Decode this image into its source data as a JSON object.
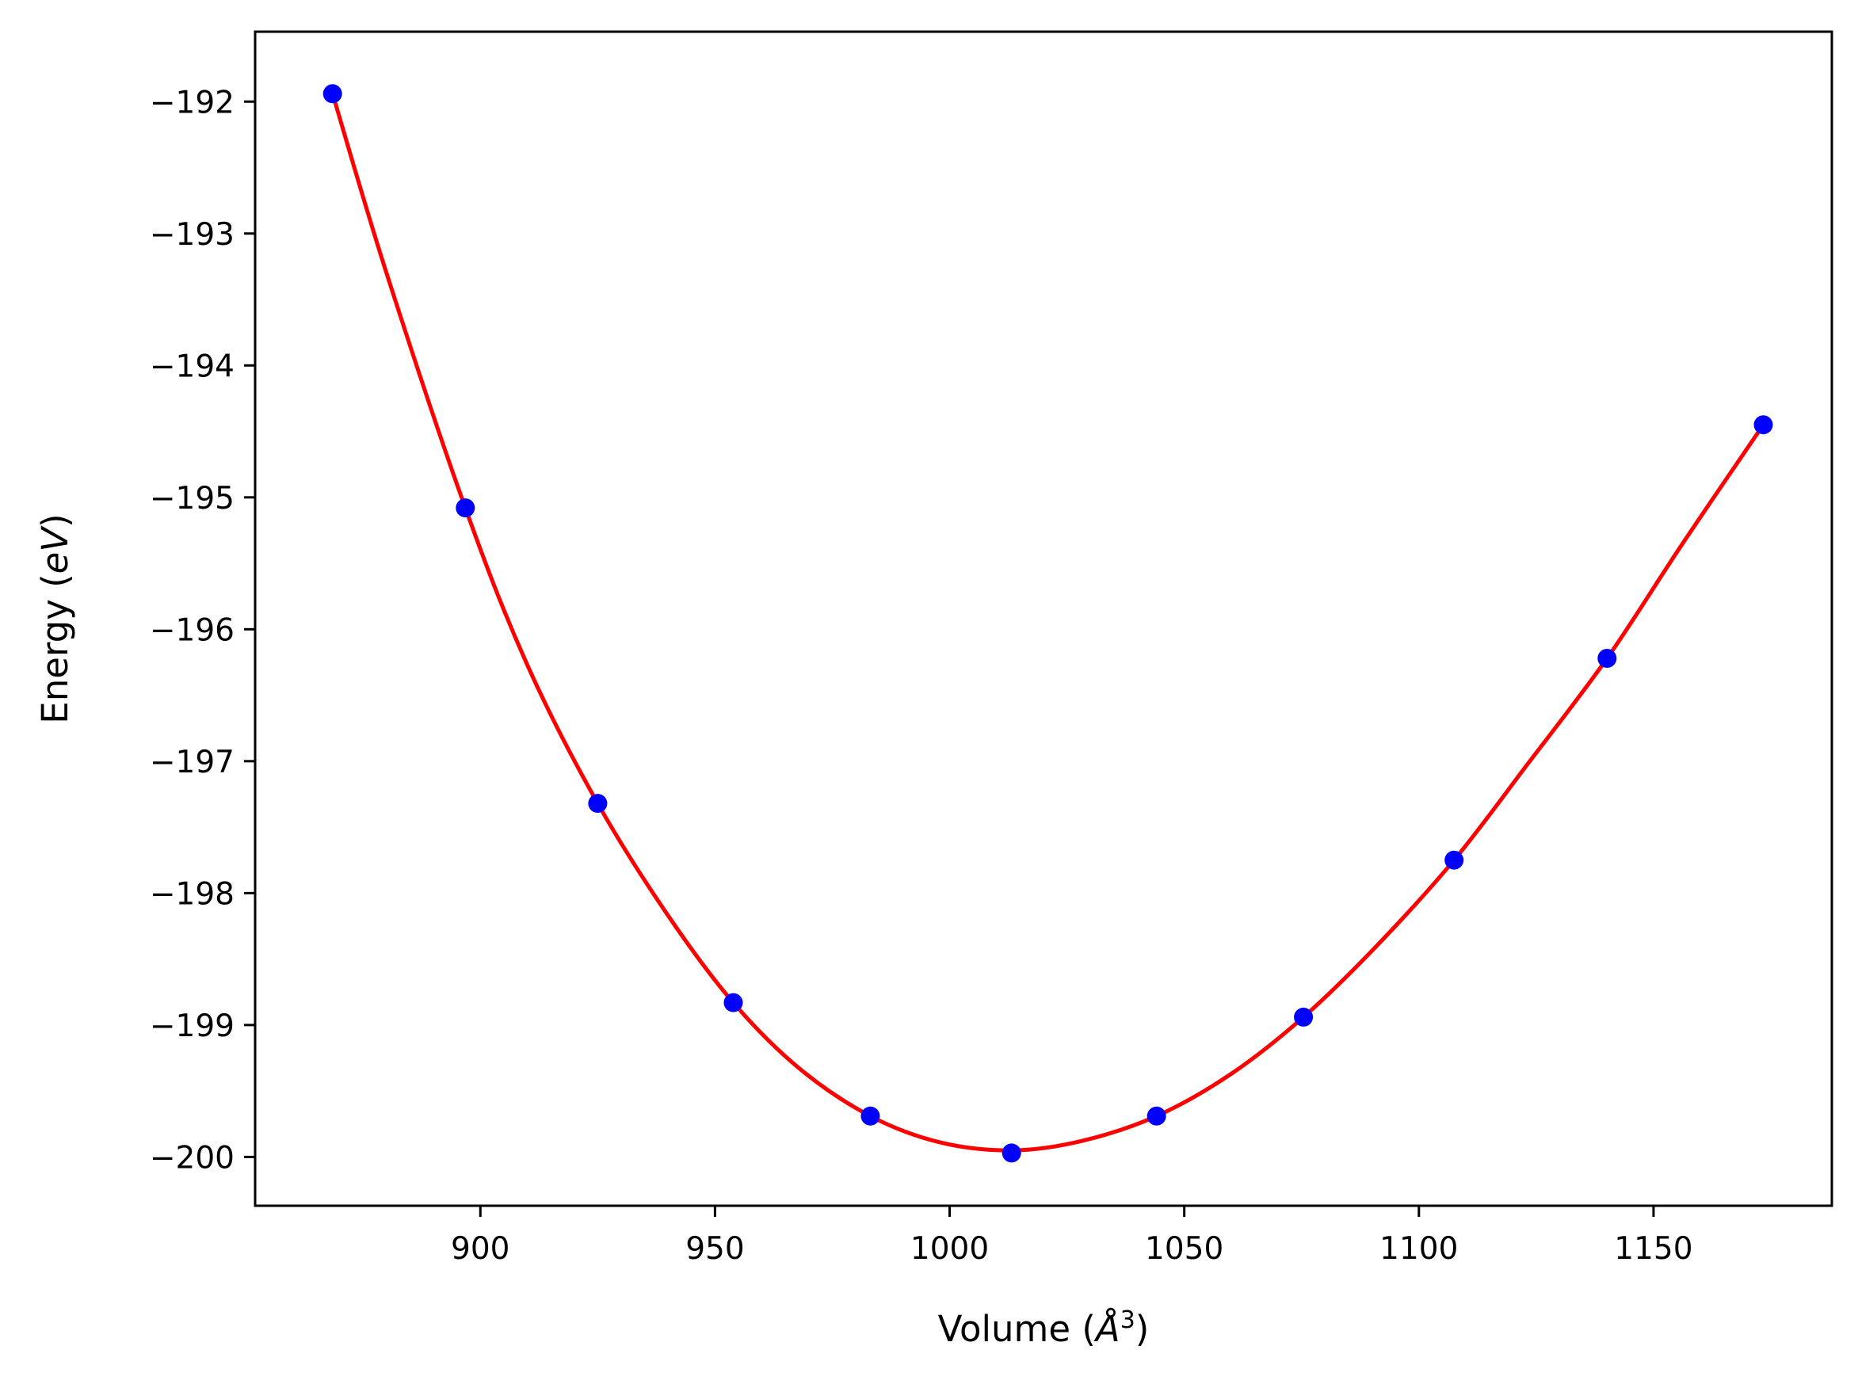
{
  "colors": {
    "fit_line": "#ff0000",
    "points": "#0000ff",
    "axes": "#000000",
    "background": "#ffffff"
  },
  "chart_data": {
    "type": "scatter",
    "xlabel": {
      "prefix": "Volume (",
      "symbol": "Å",
      "exponent": "3",
      "suffix": ")"
    },
    "ylabel": {
      "prefix": "Energy (",
      "symbol": "eV",
      "suffix": ")"
    },
    "xlim": [
      852,
      1188
    ],
    "ylim": [
      -200.37,
      -191.47
    ],
    "x_ticks": [
      900,
      950,
      1000,
      1050,
      1100,
      1150
    ],
    "x_tick_labels": [
      "900",
      "950",
      "1000",
      "1050",
      "1100",
      "1150"
    ],
    "y_ticks": [
      -192,
      -193,
      -194,
      -195,
      -196,
      -197,
      -198,
      -199,
      -200
    ],
    "y_tick_labels": [
      "−192",
      "−193",
      "−194",
      "−195",
      "−196",
      "−197",
      "−198",
      "−199",
      "−200"
    ],
    "grid": false,
    "series": [
      {
        "kind": "points",
        "x": [
          868.5,
          896.8,
          925.0,
          953.9,
          983.1,
          1013.2,
          1044.1,
          1075.4,
          1107.5,
          1140.1,
          1173.4
        ],
        "y": [
          -191.94,
          -195.08,
          -197.32,
          -198.83,
          -199.69,
          -199.97,
          -199.69,
          -198.94,
          -197.75,
          -196.22,
          -194.45
        ]
      },
      {
        "kind": "fit-curve",
        "x": [
          868.5,
          880,
          896.8,
          910,
          925.0,
          940,
          953.9,
          968,
          983.1,
          998,
          1013.2,
          1028,
          1044.1,
          1060,
          1075.4,
          1091,
          1107.5,
          1123,
          1140.1,
          1156,
          1173.4
        ],
        "y": [
          -191.94,
          -193.3,
          -195.08,
          -196.27,
          -197.32,
          -198.17,
          -198.83,
          -199.33,
          -199.69,
          -199.89,
          -199.95,
          -199.88,
          -199.69,
          -199.37,
          -198.94,
          -198.4,
          -197.75,
          -197.03,
          -196.22,
          -195.36,
          -194.45
        ]
      }
    ]
  }
}
